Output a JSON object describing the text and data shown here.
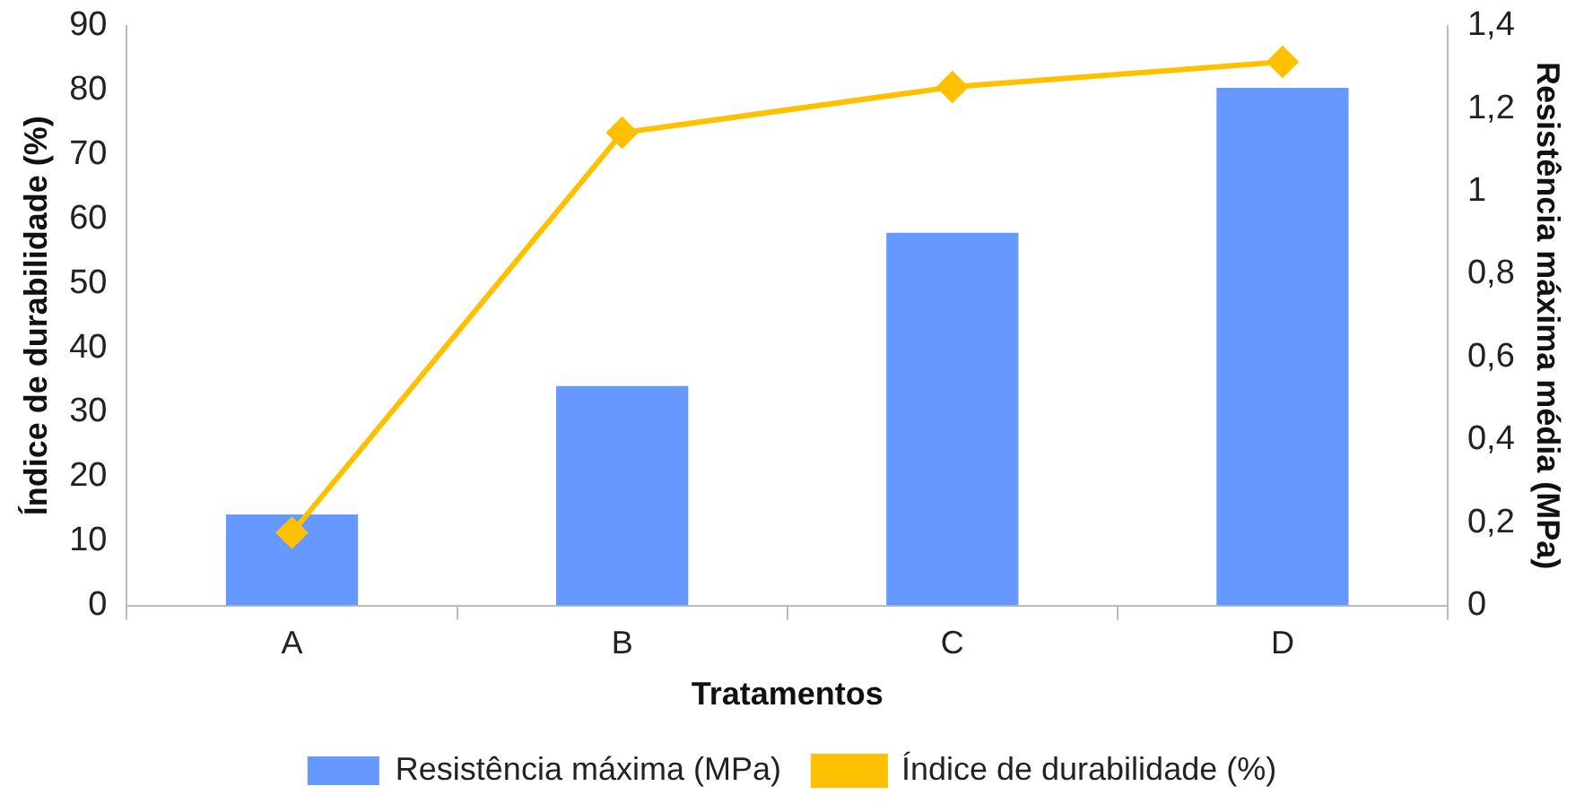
{
  "chart_data": {
    "type": "bar",
    "xlabel": "Tratamentos",
    "ylabel": "Índice de durabilidade (%)",
    "y2label": "Resistência máxima média (MPa)",
    "categories": [
      "A",
      "B",
      "C",
      "D"
    ],
    "series": [
      {
        "name": "Resistência máxima (MPa)",
        "axis": "y2",
        "color": "#6699ff",
        "values": [
          0.22,
          0.53,
          0.9,
          1.25
        ]
      },
      {
        "name": "Índice de durabilidade (%)",
        "type": "line",
        "axis": "y",
        "color": "#ffc000",
        "marker": "diamond",
        "values": [
          11.3,
          73.4,
          80.5,
          84.4
        ]
      }
    ],
    "ylim": [
      0,
      90
    ],
    "yticks": [
      0,
      10,
      20,
      30,
      40,
      50,
      60,
      70,
      80,
      90
    ],
    "y2lim": [
      0,
      1.4
    ],
    "y2ticks": [
      0,
      {
        "value": 0.2,
        "label": "0,2"
      },
      {
        "value": 0.4,
        "label": "0,4"
      },
      {
        "value": 0.6,
        "label": "0,6"
      },
      {
        "value": 0.8,
        "label": "0,8"
      },
      1,
      {
        "value": 1.2,
        "label": "1,2"
      },
      {
        "value": 1.4,
        "label": "1,4"
      }
    ],
    "grid": false,
    "legend": "bottom"
  }
}
